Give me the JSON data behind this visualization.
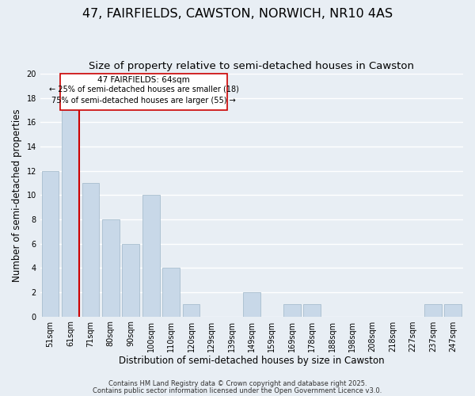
{
  "title": "47, FAIRFIELDS, CAWSTON, NORWICH, NR10 4AS",
  "subtitle": "Size of property relative to semi-detached houses in Cawston",
  "xlabel": "Distribution of semi-detached houses by size in Cawston",
  "ylabel": "Number of semi-detached properties",
  "categories": [
    "51sqm",
    "61sqm",
    "71sqm",
    "80sqm",
    "90sqm",
    "100sqm",
    "110sqm",
    "120sqm",
    "129sqm",
    "139sqm",
    "149sqm",
    "159sqm",
    "169sqm",
    "178sqm",
    "188sqm",
    "198sqm",
    "208sqm",
    "218sqm",
    "227sqm",
    "237sqm",
    "247sqm"
  ],
  "values": [
    12,
    17,
    11,
    8,
    6,
    10,
    4,
    1,
    0,
    0,
    2,
    0,
    1,
    1,
    0,
    0,
    0,
    0,
    0,
    1,
    1
  ],
  "bar_color": "#c8d8e8",
  "bar_edge_color": "#a8bece",
  "vline_color": "#cc0000",
  "vline_pos": 1.42,
  "annotation_box_title": "47 FAIRFIELDS: 64sqm",
  "annotation_line1": "← 25% of semi-detached houses are smaller (18)",
  "annotation_line2": "75% of semi-detached houses are larger (55) →",
  "annotation_box_color": "#ffffff",
  "annotation_box_edge": "#cc0000",
  "ylim": [
    0,
    20
  ],
  "yticks": [
    0,
    2,
    4,
    6,
    8,
    10,
    12,
    14,
    16,
    18,
    20
  ],
  "background_color": "#e8eef4",
  "grid_color": "#ffffff",
  "footer1": "Contains HM Land Registry data © Crown copyright and database right 2025.",
  "footer2": "Contains public sector information licensed under the Open Government Licence v3.0.",
  "title_fontsize": 11.5,
  "subtitle_fontsize": 9.5,
  "axis_label_fontsize": 8.5,
  "tick_fontsize": 7,
  "footer_fontsize": 6,
  "ann_title_fontsize": 7.5,
  "ann_text_fontsize": 7
}
